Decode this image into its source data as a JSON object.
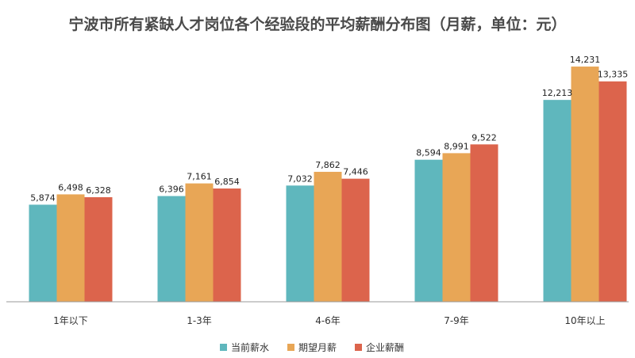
{
  "chart_data": {
    "type": "bar",
    "title": "宁波市所有紧缺人才岗位各个经验段的平均薪酬分布图（月薪，单位：元）",
    "categories": [
      "1年以下",
      "1-3年",
      "4-6年",
      "7-9年",
      "10年以上"
    ],
    "series": [
      {
        "name": "当前薪水",
        "color": "#5fb7bd",
        "values": [
          5874,
          6396,
          7032,
          8594,
          12213
        ],
        "labels": [
          "5,874",
          "6,396",
          "7,032",
          "8,594",
          "12,213"
        ]
      },
      {
        "name": "期望月薪",
        "color": "#e8a656",
        "values": [
          6498,
          7161,
          7862,
          8991,
          14231
        ],
        "labels": [
          "6,498",
          "7,161",
          "7,862",
          "8,991",
          "14,231"
        ]
      },
      {
        "name": "企业薪酬",
        "color": "#dc644c",
        "values": [
          6328,
          6854,
          7446,
          9522,
          13335
        ],
        "labels": [
          "6,328",
          "6,854",
          "7,446",
          "9,522",
          "13,335"
        ]
      }
    ],
    "ylim": [
      0,
      15000
    ],
    "grid": false,
    "legend": "bottom"
  }
}
